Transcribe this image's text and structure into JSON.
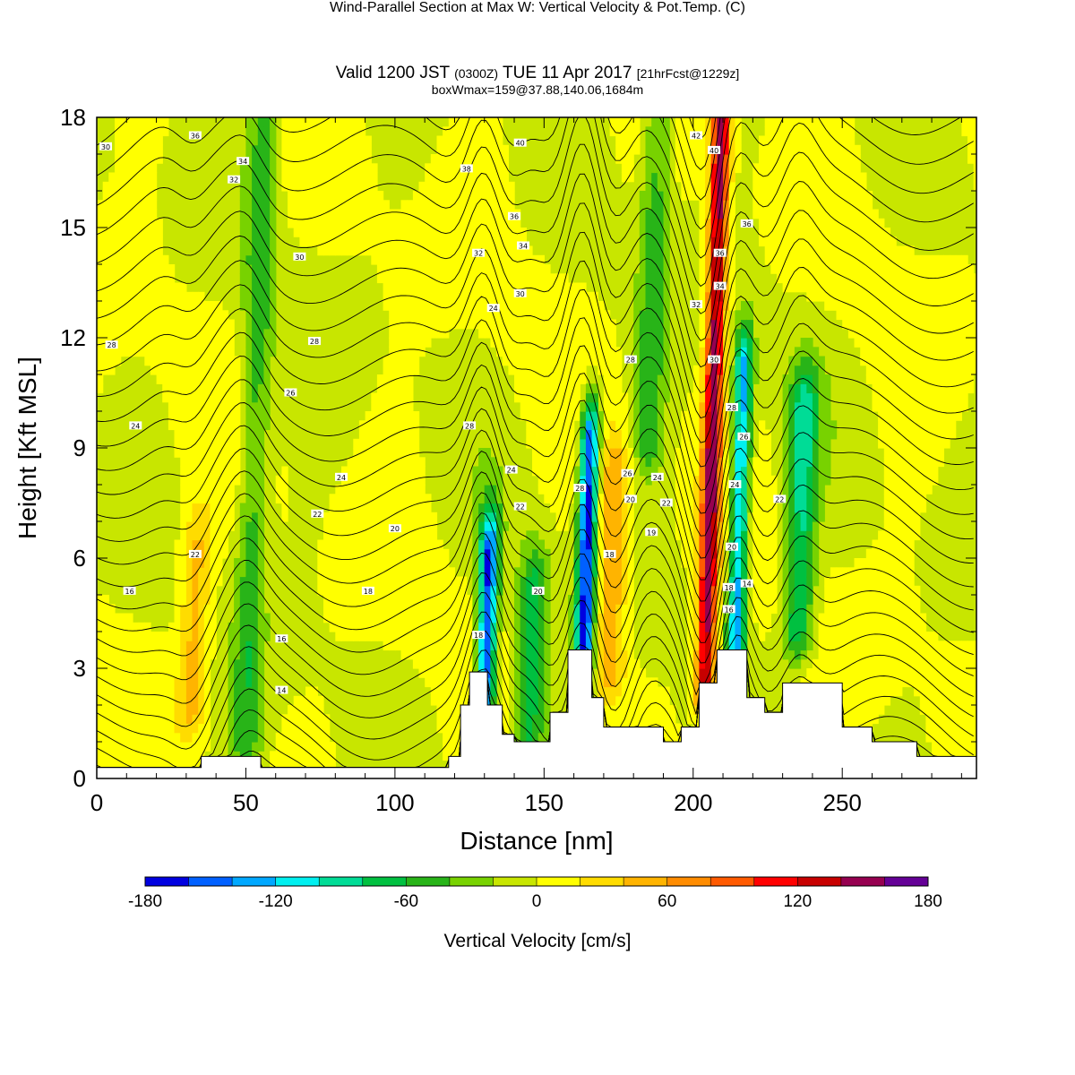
{
  "header": {
    "title": "Wind-Parallel Section at Max W: Vertical Velocity & Pot.Temp.",
    "title_mark": "(C)",
    "valid_prefix": "Valid 1200 JST",
    "valid_utc": "(0300Z)",
    "valid_date": "TUE 11 Apr 2017",
    "forecast": "[21hrFcst@1229z]",
    "boxinfo": "boxWmax=159@37.88,140.06,1684m"
  },
  "chart_data": {
    "type": "heatmap",
    "xlabel": "Distance [nm]",
    "ylabel": "Height [Kft MSL]",
    "xlim": [
      0,
      295
    ],
    "ylim": [
      0,
      18
    ],
    "x_ticks": [
      0,
      50,
      100,
      150,
      200,
      250
    ],
    "y_ticks": [
      0,
      3,
      6,
      9,
      12,
      15,
      18
    ],
    "grid": false,
    "colorbar": {
      "label": "Vertical Velocity [cm/s]",
      "range": [
        -180,
        180
      ],
      "tick_values": [
        -180,
        -120,
        -60,
        0,
        60,
        120,
        180
      ],
      "tick_labels": [
        "-180",
        "-120",
        "-60",
        "0",
        "60",
        "120",
        "180"
      ],
      "colors": [
        "#0000e0",
        "#0060ff",
        "#00a8ff",
        "#00f0f0",
        "#00dc96",
        "#00c040",
        "#28b418",
        "#78d200",
        "#c8e600",
        "#ffff00",
        "#ffdc00",
        "#ffb400",
        "#ff8c00",
        "#ff5a00",
        "#ff0000",
        "#c80000",
        "#960050",
        "#640096"
      ]
    },
    "terrain_kft": [
      [
        0,
        0.3
      ],
      [
        35,
        0.3
      ],
      [
        35,
        0.6
      ],
      [
        55,
        0.6
      ],
      [
        55,
        0.3
      ],
      [
        118,
        0.3
      ],
      [
        118,
        0.6
      ],
      [
        122,
        0.6
      ],
      [
        122,
        2.0
      ],
      [
        125,
        2.0
      ],
      [
        125,
        2.9
      ],
      [
        131,
        2.9
      ],
      [
        131,
        2.0
      ],
      [
        136,
        2.0
      ],
      [
        136,
        1.2
      ],
      [
        140,
        1.2
      ],
      [
        140,
        1.0
      ],
      [
        152,
        1.0
      ],
      [
        152,
        1.8
      ],
      [
        158,
        1.8
      ],
      [
        158,
        3.5
      ],
      [
        166,
        3.5
      ],
      [
        166,
        2.2
      ],
      [
        170,
        2.2
      ],
      [
        170,
        1.4
      ],
      [
        190,
        1.4
      ],
      [
        190,
        1.0
      ],
      [
        196,
        1.0
      ],
      [
        196,
        1.4
      ],
      [
        202,
        1.4
      ],
      [
        202,
        2.6
      ],
      [
        208,
        2.6
      ],
      [
        208,
        3.5
      ],
      [
        218,
        3.5
      ],
      [
        218,
        2.2
      ],
      [
        224,
        2.2
      ],
      [
        224,
        1.8
      ],
      [
        230,
        1.8
      ],
      [
        230,
        2.6
      ],
      [
        250,
        2.6
      ],
      [
        250,
        1.4
      ],
      [
        260,
        1.4
      ],
      [
        260,
        1.0
      ],
      [
        275,
        1.0
      ],
      [
        275,
        0.6
      ],
      [
        295,
        0.6
      ]
    ],
    "w_features": [
      {
        "x": 130,
        "w": -160,
        "z0": 1.5,
        "z1": 6
      },
      {
        "x": 145,
        "w": -70,
        "z0": 0.5,
        "z1": 5
      },
      {
        "x": 163,
        "w": -170,
        "z0": 2.5,
        "z1": 9
      },
      {
        "x": 172,
        "w": 60,
        "z0": 3,
        "z1": 8
      },
      {
        "x": 185,
        "w": -50,
        "z0": 9,
        "z1": 18
      },
      {
        "x": 204,
        "w": 150,
        "z0": 2.5,
        "z1": 18
      },
      {
        "x": 214,
        "w": -130,
        "z0": 3,
        "z1": 11
      },
      {
        "x": 235,
        "w": -80,
        "z0": 4,
        "z1": 10
      },
      {
        "x": 32,
        "w": 50,
        "z0": 2,
        "z1": 6
      },
      {
        "x": 50,
        "w": -50,
        "z0": 1,
        "z1": 18
      }
    ],
    "theta_levels_C": [
      14,
      16,
      18,
      20,
      22,
      24,
      26,
      28,
      30,
      32,
      34,
      36,
      38,
      40,
      42
    ],
    "contour_labels": [
      {
        "x": 3,
        "z": 17.2,
        "t": "30"
      },
      {
        "x": 33,
        "z": 17.5,
        "t": "36"
      },
      {
        "x": 49,
        "z": 16.8,
        "t": "34"
      },
      {
        "x": 46,
        "z": 16.3,
        "t": "32"
      },
      {
        "x": 5,
        "z": 11.8,
        "t": "28"
      },
      {
        "x": 68,
        "z": 14.2,
        "t": "30"
      },
      {
        "x": 73,
        "z": 11.9,
        "t": "28"
      },
      {
        "x": 65,
        "z": 10.5,
        "t": "26"
      },
      {
        "x": 13,
        "z": 9.6,
        "t": "24"
      },
      {
        "x": 82,
        "z": 8.2,
        "t": "24"
      },
      {
        "x": 74,
        "z": 7.2,
        "t": "22"
      },
      {
        "x": 100,
        "z": 6.8,
        "t": "20"
      },
      {
        "x": 33,
        "z": 6.1,
        "t": "22"
      },
      {
        "x": 11,
        "z": 5.1,
        "t": "16"
      },
      {
        "x": 91,
        "z": 5.1,
        "t": "18"
      },
      {
        "x": 62,
        "z": 3.8,
        "t": "16"
      },
      {
        "x": 62,
        "z": 2.4,
        "t": "14"
      },
      {
        "x": 142,
        "z": 17.3,
        "t": "40"
      },
      {
        "x": 124,
        "z": 16.6,
        "t": "38"
      },
      {
        "x": 140,
        "z": 15.3,
        "t": "36"
      },
      {
        "x": 143,
        "z": 14.5,
        "t": "34"
      },
      {
        "x": 128,
        "z": 14.3,
        "t": "32"
      },
      {
        "x": 142,
        "z": 13.2,
        "t": "30"
      },
      {
        "x": 133,
        "z": 12.8,
        "t": "24"
      },
      {
        "x": 125,
        "z": 9.6,
        "t": "28"
      },
      {
        "x": 139,
        "z": 8.4,
        "t": "24"
      },
      {
        "x": 142,
        "z": 7.4,
        "t": "22"
      },
      {
        "x": 148,
        "z": 5.1,
        "t": "20"
      },
      {
        "x": 128,
        "z": 3.9,
        "t": "18"
      },
      {
        "x": 162,
        "z": 7.9,
        "t": "28"
      },
      {
        "x": 172,
        "z": 6.1,
        "t": "18"
      },
      {
        "x": 179,
        "z": 11.4,
        "t": "28"
      },
      {
        "x": 178,
        "z": 8.3,
        "t": "26"
      },
      {
        "x": 188,
        "z": 8.2,
        "t": "24"
      },
      {
        "x": 179,
        "z": 7.6,
        "t": "20"
      },
      {
        "x": 186,
        "z": 6.7,
        "t": "19"
      },
      {
        "x": 191,
        "z": 7.5,
        "t": "22"
      },
      {
        "x": 201,
        "z": 17.5,
        "t": "42"
      },
      {
        "x": 207,
        "z": 17.1,
        "t": "40"
      },
      {
        "x": 218,
        "z": 15.1,
        "t": "36"
      },
      {
        "x": 209,
        "z": 14.3,
        "t": "36"
      },
      {
        "x": 209,
        "z": 13.4,
        "t": "34"
      },
      {
        "x": 201,
        "z": 12.9,
        "t": "32"
      },
      {
        "x": 207,
        "z": 11.4,
        "t": "30"
      },
      {
        "x": 213,
        "z": 10.1,
        "t": "28"
      },
      {
        "x": 217,
        "z": 9.3,
        "t": "26"
      },
      {
        "x": 214,
        "z": 8.0,
        "t": "24"
      },
      {
        "x": 213,
        "z": 6.3,
        "t": "20"
      },
      {
        "x": 212,
        "z": 5.2,
        "t": "18"
      },
      {
        "x": 212,
        "z": 4.6,
        "t": "16"
      },
      {
        "x": 218,
        "z": 5.3,
        "t": "14"
      },
      {
        "x": 229,
        "z": 7.6,
        "t": "22"
      }
    ]
  }
}
